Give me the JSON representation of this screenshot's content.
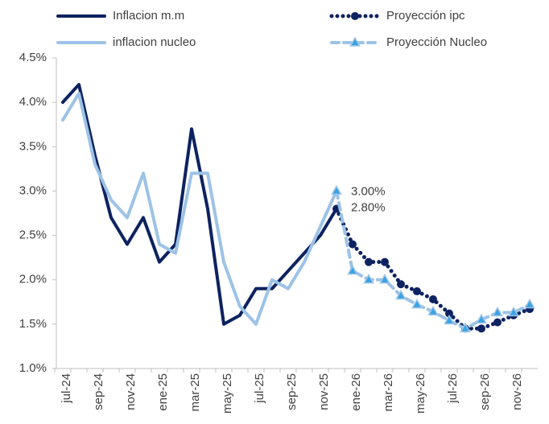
{
  "chart_data": {
    "type": "line",
    "categories": [
      "jul-24",
      null,
      "sep-24",
      null,
      "nov-24",
      null,
      "ene-25",
      null,
      "mar-25",
      null,
      "may-25",
      null,
      "jul-25",
      null,
      "sep-25",
      null,
      "nov-25",
      null,
      "ene-26",
      null,
      "mar-26",
      null,
      "may-26",
      null,
      "jul-26",
      null,
      "sep-26",
      null,
      "nov-26",
      null
    ],
    "ylim": [
      1.0,
      4.5
    ],
    "yticks": [
      {
        "value": 1.0,
        "label": "1.0%"
      },
      {
        "value": 1.5,
        "label": "1.5%"
      },
      {
        "value": 2.0,
        "label": "2.0%"
      },
      {
        "value": 2.5,
        "label": "2.5%"
      },
      {
        "value": 3.0,
        "label": "3.0%"
      },
      {
        "value": 3.5,
        "label": "3.5%"
      },
      {
        "value": 4.0,
        "label": "4.0%"
      },
      {
        "value": 4.5,
        "label": "4.5%"
      }
    ],
    "grid": false,
    "series": [
      {
        "name": "Inflacion m.m",
        "color": "#0d2260",
        "style": "solid",
        "marker": null,
        "values": [
          4.0,
          4.2,
          3.4,
          2.7,
          2.4,
          2.7,
          2.2,
          2.4,
          3.7,
          2.8,
          1.5,
          1.6,
          1.9,
          1.9,
          2.1,
          2.3,
          2.5,
          2.8,
          null,
          null,
          null,
          null,
          null,
          null,
          null,
          null,
          null,
          null,
          null,
          null
        ]
      },
      {
        "name": "inflacion nucleo",
        "color": "#9dc3e6",
        "style": "solid",
        "marker": null,
        "values": [
          3.8,
          4.1,
          3.3,
          2.9,
          2.7,
          3.2,
          2.4,
          2.3,
          3.2,
          3.2,
          2.2,
          1.7,
          1.5,
          2.0,
          1.9,
          2.2,
          2.6,
          3.0,
          null,
          null,
          null,
          null,
          null,
          null,
          null,
          null,
          null,
          null,
          null,
          null
        ]
      },
      {
        "name": "Proyección ipc",
        "color": "#0d2260",
        "style": "dotted",
        "marker": "circle",
        "values": [
          null,
          null,
          null,
          null,
          null,
          null,
          null,
          null,
          null,
          null,
          null,
          null,
          null,
          null,
          null,
          null,
          null,
          2.8,
          2.4,
          2.2,
          2.2,
          1.95,
          1.87,
          1.78,
          1.62,
          1.45,
          1.45,
          1.52,
          1.6,
          1.67
        ],
        "value_labels": [
          null,
          null,
          null,
          null,
          null,
          null,
          null,
          null,
          null,
          null,
          null,
          null,
          null,
          null,
          null,
          null,
          null,
          "2.80%",
          null,
          null,
          null,
          null,
          null,
          null,
          null,
          null,
          null,
          null,
          null,
          null
        ]
      },
      {
        "name": "Proyección Nucleo",
        "color": "#9dc3e6",
        "marker_color": "#3aa3e3",
        "style": "dashed",
        "marker": "triangle",
        "values": [
          null,
          null,
          null,
          null,
          null,
          null,
          null,
          null,
          null,
          null,
          null,
          null,
          null,
          null,
          null,
          null,
          null,
          3.0,
          2.1,
          2.0,
          2.0,
          1.82,
          1.72,
          1.64,
          1.54,
          1.45,
          1.55,
          1.63,
          1.63,
          1.72
        ],
        "value_labels": [
          null,
          null,
          null,
          null,
          null,
          null,
          null,
          null,
          null,
          null,
          null,
          null,
          null,
          null,
          null,
          null,
          null,
          "3.00%",
          null,
          null,
          null,
          null,
          null,
          null,
          null,
          null,
          null,
          null,
          null,
          null
        ]
      }
    ]
  }
}
